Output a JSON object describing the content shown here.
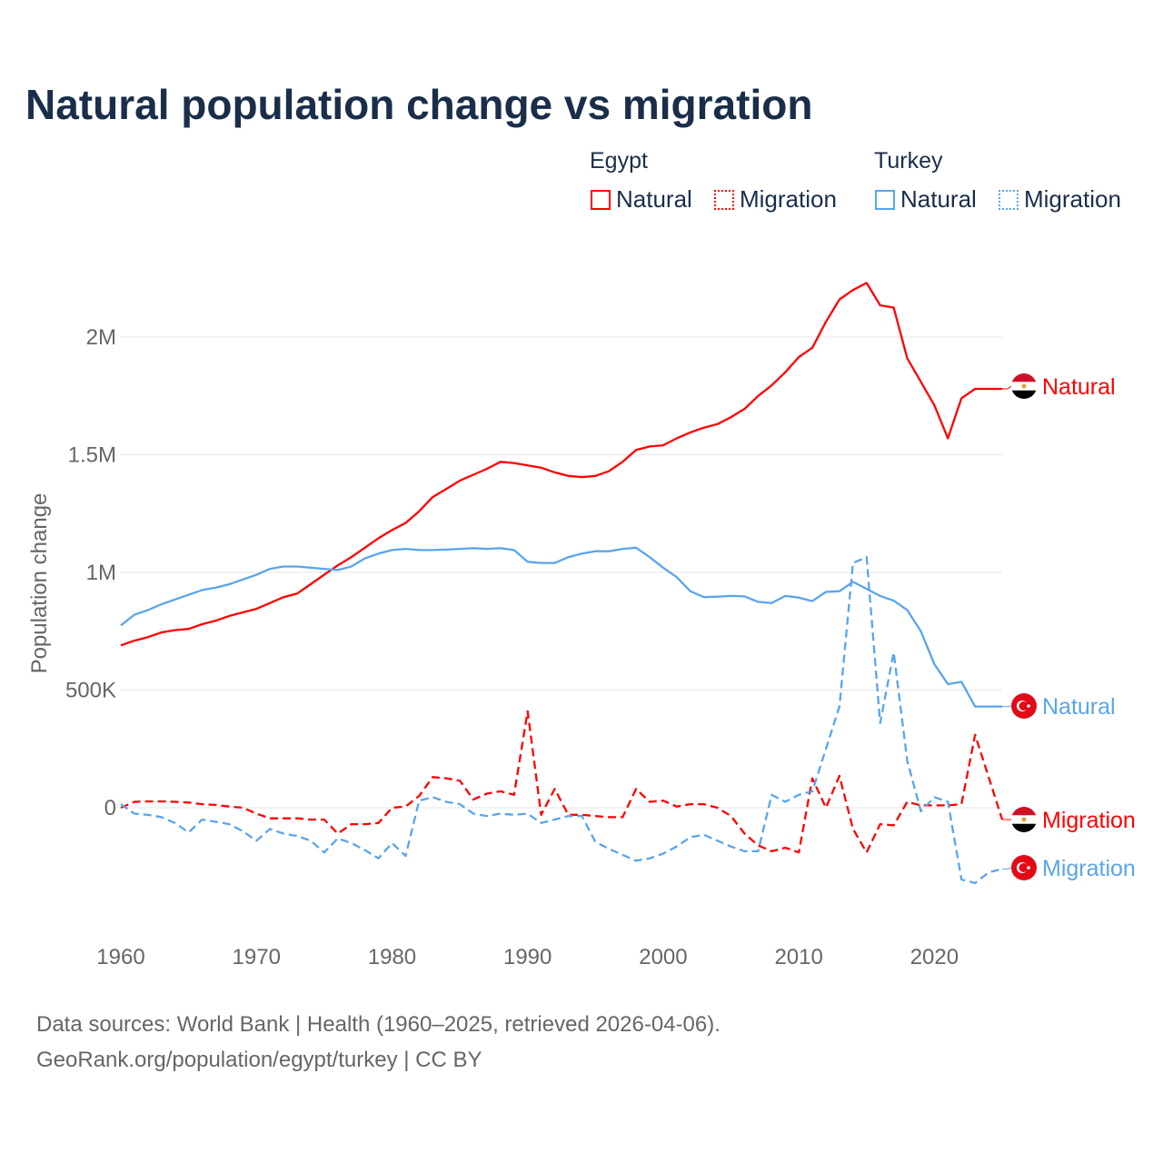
{
  "title": "Natural population change vs migration",
  "legend": {
    "groups": [
      {
        "name": "Egypt",
        "items": [
          {
            "label": "Natural",
            "style": "solid"
          },
          {
            "label": "Migration",
            "style": "dashed"
          }
        ],
        "color": "#ff0000"
      },
      {
        "name": "Turkey",
        "items": [
          {
            "label": "Natural",
            "style": "solid"
          },
          {
            "label": "Migration",
            "style": "dashed"
          }
        ],
        "color": "#5aa5ea"
      }
    ]
  },
  "source": {
    "line1": "Data sources: World Bank | Health (1960–2025, retrieved 2026-04-06).",
    "line2": "GeoRank.org/population/egypt/turkey | CC BY"
  },
  "chart_data": {
    "type": "line",
    "title": "Natural population change vs migration",
    "xlabel": "",
    "ylabel": "Population change",
    "xlim": [
      1960,
      2025
    ],
    "ylim": [
      -400000,
      2300000
    ],
    "x_ticks": [
      1960,
      1970,
      1980,
      1990,
      2000,
      2010,
      2020
    ],
    "y_ticks": [
      {
        "value": 0,
        "label": "0"
      },
      {
        "value": 500000,
        "label": "500K"
      },
      {
        "value": 1000000,
        "label": "1M"
      },
      {
        "value": 1500000,
        "label": "1.5M"
      },
      {
        "value": 2000000,
        "label": "2M"
      }
    ],
    "grid": true,
    "start_year": 1960,
    "series": [
      {
        "name": "Egypt Natural",
        "end_label": "Natural",
        "country": "Egypt",
        "color": "#ff0000",
        "dashed": false,
        "values_thousands": [
          690,
          710,
          725,
          745,
          755,
          760,
          780,
          795,
          815,
          830,
          845,
          870,
          895,
          910,
          950,
          990,
          1030,
          1065,
          1105,
          1145,
          1180,
          1210,
          1260,
          1320,
          1355,
          1390,
          1415,
          1440,
          1470,
          1465,
          1455,
          1445,
          1425,
          1410,
          1405,
          1410,
          1430,
          1470,
          1520,
          1535,
          1540,
          1570,
          1595,
          1615,
          1630,
          1660,
          1695,
          1750,
          1795,
          1850,
          1915,
          1955,
          2065,
          2160,
          2200,
          2230,
          2135,
          2125,
          1910,
          1810,
          1710,
          1570,
          1740,
          1780,
          1780,
          1780
        ]
      },
      {
        "name": "Turkey Natural",
        "end_label": "Natural",
        "country": "Turkey",
        "color": "#5aa5ea",
        "dashed": false,
        "values_thousands": [
          775,
          820,
          840,
          865,
          885,
          905,
          925,
          935,
          950,
          970,
          990,
          1015,
          1025,
          1025,
          1020,
          1015,
          1010,
          1025,
          1060,
          1080,
          1095,
          1100,
          1095,
          1095,
          1097,
          1100,
          1103,
          1100,
          1103,
          1095,
          1045,
          1040,
          1040,
          1065,
          1080,
          1090,
          1090,
          1100,
          1105,
          1065,
          1020,
          980,
          920,
          895,
          897,
          900,
          898,
          875,
          870,
          900,
          893,
          878,
          917,
          920,
          960,
          930,
          900,
          880,
          840,
          750,
          610,
          525,
          535,
          430,
          430,
          430
        ]
      },
      {
        "name": "Egypt Migration",
        "end_label": "Migration",
        "country": "Egypt",
        "color": "#ff0000",
        "dashed": true,
        "values_thousands": [
          0,
          25,
          27,
          27,
          25,
          22,
          15,
          12,
          5,
          0,
          -25,
          -45,
          -45,
          -45,
          -50,
          -50,
          -110,
          -70,
          -70,
          -65,
          0,
          5,
          50,
          130,
          125,
          115,
          35,
          60,
          70,
          55,
          410,
          -30,
          80,
          -30,
          -30,
          -35,
          -40,
          -40,
          80,
          25,
          30,
          5,
          15,
          15,
          0,
          -35,
          -110,
          -160,
          -185,
          -170,
          -190,
          125,
          0,
          135,
          -90,
          -190,
          -70,
          -75,
          25,
          10,
          10,
          10,
          15,
          310,
          130,
          -50
        ]
      },
      {
        "name": "Turkey Migration",
        "end_label": "Migration",
        "country": "Turkey",
        "color": "#5aa5ea",
        "dashed": true,
        "values_thousands": [
          15,
          -25,
          -30,
          -40,
          -65,
          -105,
          -50,
          -60,
          -70,
          -100,
          -140,
          -90,
          -110,
          -120,
          -140,
          -190,
          -130,
          -150,
          -180,
          -215,
          -150,
          -205,
          30,
          45,
          25,
          15,
          -25,
          -35,
          -25,
          -30,
          -25,
          -65,
          -50,
          -35,
          -35,
          -145,
          -175,
          -200,
          -225,
          -215,
          -195,
          -165,
          -125,
          -115,
          -140,
          -165,
          -185,
          -185,
          55,
          25,
          55,
          70,
          250,
          430,
          1040,
          1065,
          360,
          660,
          200,
          -15,
          45,
          25,
          -305,
          -320,
          -275,
          -260
        ]
      }
    ]
  }
}
